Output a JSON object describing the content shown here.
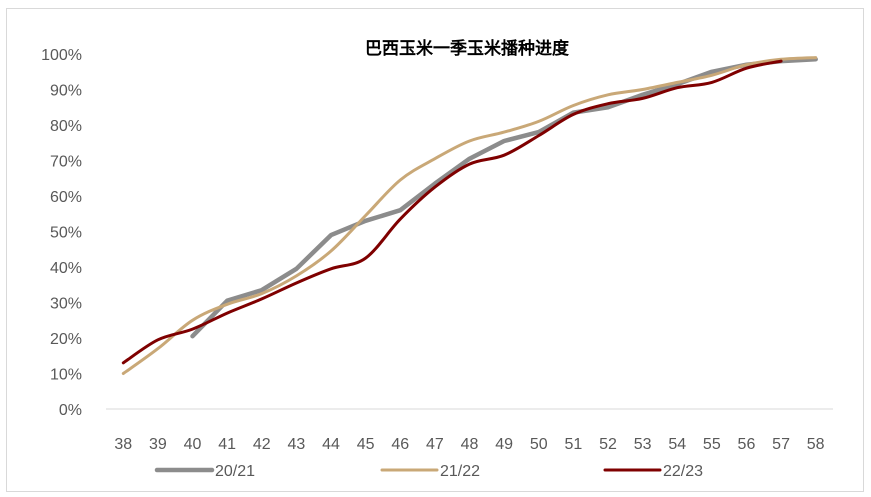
{
  "chart_data": {
    "type": "line",
    "title": "巴西玉米一季玉米播种进度",
    "xlabel": "",
    "ylabel": "",
    "x": [
      38,
      39,
      40,
      41,
      42,
      43,
      44,
      45,
      46,
      47,
      48,
      49,
      50,
      51,
      52,
      53,
      54,
      55,
      56,
      57,
      58
    ],
    "xticks": [
      "38",
      "39",
      "40",
      "41",
      "42",
      "43",
      "44",
      "45",
      "46",
      "47",
      "48",
      "49",
      "50",
      "51",
      "52",
      "53",
      "54",
      "55",
      "56",
      "57",
      "58"
    ],
    "yticks": [
      "0%",
      "10%",
      "20%",
      "30%",
      "40%",
      "50%",
      "60%",
      "70%",
      "80%",
      "90%",
      "100%"
    ],
    "ylim": [
      0,
      100
    ],
    "grid": false,
    "legend_position": "bottom",
    "series": [
      {
        "name": "20/21",
        "color": "#8c8c8c",
        "values": [
          null,
          null,
          20.5,
          30.5,
          33.5,
          39.5,
          49,
          53,
          56,
          63.5,
          70.5,
          75.5,
          78,
          83.5,
          85,
          88.5,
          91.5,
          95,
          97,
          98,
          98.5
        ]
      },
      {
        "name": "21/22",
        "color": "#c9a877",
        "values": [
          10,
          17,
          25,
          29.5,
          32.5,
          37.5,
          44.5,
          54.5,
          64.5,
          70.5,
          75.5,
          78,
          81,
          85.5,
          88.5,
          90,
          92,
          94,
          97,
          98.5,
          99
        ]
      },
      {
        "name": "22/23",
        "color": "#7f0000",
        "values": [
          13,
          19.5,
          22.5,
          27,
          31,
          35.5,
          39.5,
          42.5,
          53.5,
          62.5,
          69,
          71.5,
          77,
          83,
          86,
          87.5,
          90.5,
          92,
          96,
          98,
          null
        ]
      }
    ]
  }
}
